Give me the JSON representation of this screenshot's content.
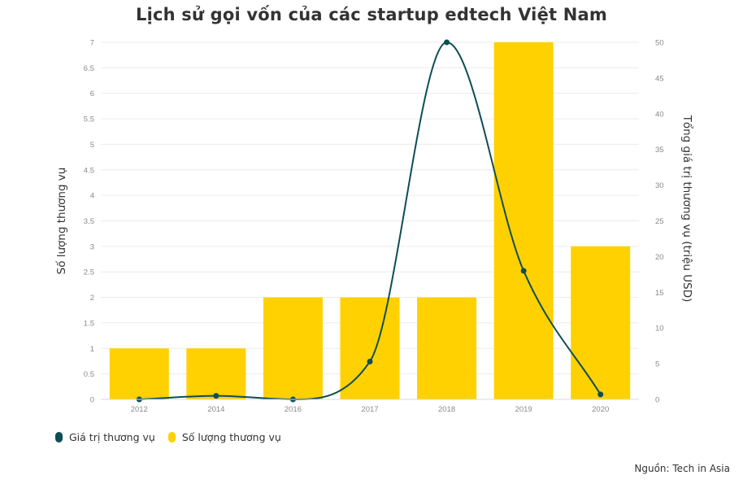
{
  "chart_data": {
    "type": "bar",
    "title": "Lịch sử gọi vốn của các startup edtech Việt Nam",
    "categories": [
      "2012",
      "2014",
      "2016",
      "2017",
      "2018",
      "2019",
      "2020"
    ],
    "series": [
      {
        "name": "Số lượng thương vụ",
        "type": "bar",
        "axis": "left",
        "color": "#FFD100",
        "values": [
          1,
          1,
          2,
          2,
          2,
          7,
          3
        ]
      },
      {
        "name": "Giá trị thương vụ",
        "type": "line",
        "axis": "right",
        "color": "#0E4D57",
        "values": [
          0,
          0.5,
          0,
          5.3,
          50,
          18,
          0.7
        ]
      }
    ],
    "ylabel": "Số lượng thương vụ",
    "ylabel_right": "Tổng giá trị thương vụ (triệu USD)",
    "ylim": [
      0,
      7
    ],
    "ylim_right": [
      0,
      50
    ],
    "yticks": [
      "0",
      "0.5",
      "1",
      "1.5",
      "2",
      "2.5",
      "3",
      "3.5",
      "4",
      "4.5",
      "5",
      "5.5",
      "6",
      "6.5",
      "7"
    ],
    "yticks_right": [
      "0",
      "5",
      "10",
      "15",
      "20",
      "25",
      "30",
      "35",
      "40",
      "45",
      "50"
    ],
    "legend": {
      "position": "bottom-left",
      "entries": [
        {
          "label": "Giá trị thương vụ",
          "color": "#0E4D57"
        },
        {
          "label": "Số lượng thương vụ",
          "color": "#FFD100"
        }
      ]
    },
    "source": "Nguồn: Tech in Asia",
    "grid": true
  }
}
